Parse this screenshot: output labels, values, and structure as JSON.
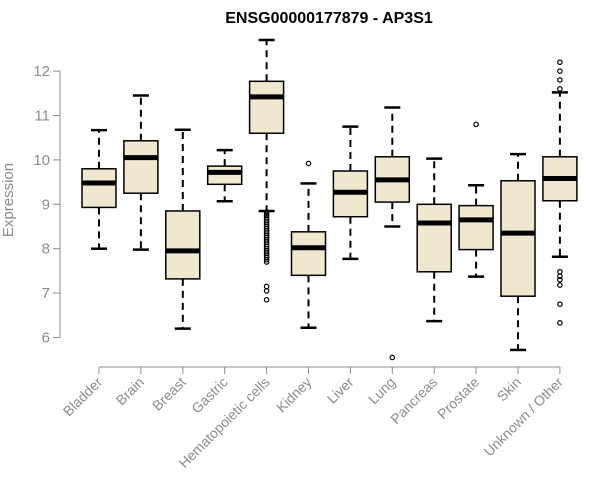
{
  "chart_data": {
    "type": "boxplot",
    "title": "ENSG00000177879 - AP3S1",
    "xlabel": "",
    "ylabel": "Expression",
    "ylim": [
      5.5,
      12.75
    ],
    "yticks": [
      6,
      7,
      8,
      9,
      10,
      11,
      12
    ],
    "grid": false,
    "legend": "none",
    "box_fill": "#efe8cf",
    "categories": [
      "Bladder",
      "Brain",
      "Breast",
      "Gastric",
      "Hematopoietic cells",
      "Kidney",
      "Liver",
      "Lung",
      "Pancreas",
      "Prostate",
      "Skin",
      "Unknown / Other"
    ],
    "boxes": [
      {
        "min": 8.0,
        "q1": 8.93,
        "median": 9.48,
        "q3": 9.8,
        "max": 10.67,
        "outliers": []
      },
      {
        "min": 7.98,
        "q1": 9.25,
        "median": 10.05,
        "q3": 10.43,
        "max": 11.45,
        "outliers": []
      },
      {
        "min": 6.2,
        "q1": 7.32,
        "median": 7.95,
        "q3": 8.85,
        "max": 10.68,
        "outliers": []
      },
      {
        "min": 9.07,
        "q1": 9.45,
        "median": 9.72,
        "q3": 9.86,
        "max": 10.22,
        "outliers": []
      },
      {
        "min": 8.85,
        "q1": 10.6,
        "median": 11.42,
        "q3": 11.77,
        "max": 12.7,
        "outliers": [
          8.82,
          8.78,
          8.75,
          8.7,
          8.65,
          8.6,
          8.55,
          8.5,
          8.45,
          8.4,
          8.35,
          8.3,
          8.25,
          8.2,
          8.15,
          8.1,
          8.05,
          8.0,
          7.95,
          7.9,
          7.85,
          7.8,
          7.75,
          7.7,
          7.15,
          7.05,
          6.85
        ]
      },
      {
        "min": 6.22,
        "q1": 7.4,
        "median": 8.02,
        "q3": 8.38,
        "max": 9.47,
        "outliers": [
          9.92
        ]
      },
      {
        "min": 7.77,
        "q1": 8.72,
        "median": 9.27,
        "q3": 9.75,
        "max": 10.75,
        "outliers": []
      },
      {
        "min": 8.5,
        "q1": 9.05,
        "median": 9.55,
        "q3": 10.07,
        "max": 11.18,
        "outliers": [
          5.55
        ]
      },
      {
        "min": 6.37,
        "q1": 7.48,
        "median": 8.58,
        "q3": 9.0,
        "max": 10.03,
        "outliers": []
      },
      {
        "min": 7.37,
        "q1": 7.98,
        "median": 8.65,
        "q3": 8.97,
        "max": 9.43,
        "outliers": [
          10.8
        ]
      },
      {
        "min": 5.72,
        "q1": 6.93,
        "median": 8.35,
        "q3": 9.53,
        "max": 10.13,
        "outliers": []
      },
      {
        "min": 7.82,
        "q1": 9.08,
        "median": 9.58,
        "q3": 10.07,
        "max": 11.52,
        "outliers": [
          12.2,
          12.0,
          11.8,
          11.6,
          7.48,
          7.38,
          7.3,
          7.18,
          6.75,
          6.33
        ]
      }
    ]
  }
}
